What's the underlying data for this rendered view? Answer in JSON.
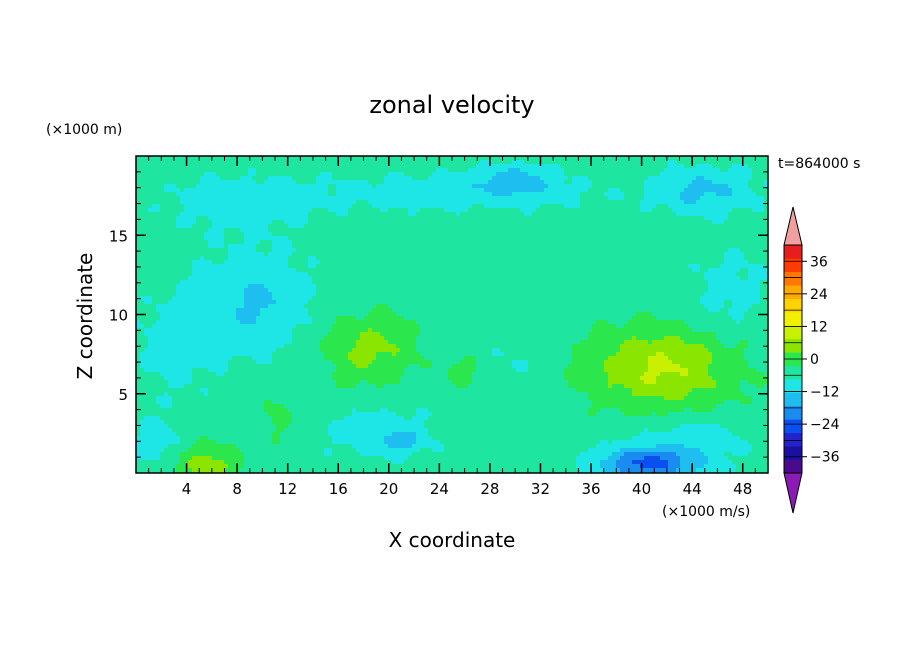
{
  "chart_data": {
    "type": "heatmap",
    "title": "zonal velocity",
    "xlabel": "X coordinate",
    "ylabel": "Z coordinate",
    "y_unit": "(×1000 m)",
    "colorbar_unit": "(×1000 m/s)",
    "time_label": "t=864000 s",
    "xlim": [
      0,
      50
    ],
    "ylim": [
      0,
      20
    ],
    "x_ticks": [
      4,
      8,
      12,
      16,
      20,
      24,
      28,
      32,
      36,
      40,
      44,
      48
    ],
    "y_ticks": [
      5,
      10,
      15
    ],
    "colorbar": {
      "min": -42,
      "max": 42,
      "step": 6,
      "tick_labels": [
        {
          "value": 36,
          "label": "36"
        },
        {
          "value": 24,
          "label": "24"
        },
        {
          "value": 12,
          "label": "12"
        },
        {
          "value": 0,
          "label": "0"
        },
        {
          "value": -12,
          "label": "−12"
        },
        {
          "value": -24,
          "label": "−24"
        },
        {
          "value": -36,
          "label": "−36"
        }
      ],
      "extend": "both"
    },
    "features": [
      {
        "x": 18.5,
        "z": 7.8,
        "amp": 11,
        "sx": 3.6,
        "sz": 2.2
      },
      {
        "x": 26,
        "z": 6.4,
        "amp": 6,
        "sx": 1.6,
        "sz": 1.0
      },
      {
        "x": 41.5,
        "z": 6.6,
        "amp": 16,
        "sx": 6.0,
        "sz": 2.6
      },
      {
        "x": 5.8,
        "z": 0.5,
        "amp": 12,
        "sx": 2.5,
        "sz": 1.3
      },
      {
        "x": 11.2,
        "z": 3.7,
        "amp": 5,
        "sx": 1.3,
        "sz": 1.8
      },
      {
        "x": 9.5,
        "z": 10.8,
        "amp": -10,
        "sx": 4.5,
        "sz": 3.2
      },
      {
        "x": 3.0,
        "z": 8.0,
        "amp": -5,
        "sx": 3.5,
        "sz": 3.5
      },
      {
        "x": 19.5,
        "z": 2.5,
        "amp": -7,
        "sx": 4.5,
        "sz": 1.7
      },
      {
        "x": 21,
        "z": 2.0,
        "amp": -8,
        "sx": 1.5,
        "sz": 0.6
      },
      {
        "x": 40.5,
        "z": 0.6,
        "amp": -22,
        "sx": 4.0,
        "sz": 1.0
      },
      {
        "x": 44,
        "z": 2.2,
        "amp": -6,
        "sx": 5.0,
        "sz": 1.6
      },
      {
        "x": 1.5,
        "z": 2.0,
        "amp": -6,
        "sx": 2.0,
        "sz": 1.6
      },
      {
        "x": 30,
        "z": 18.5,
        "amp": -10,
        "sx": 3.0,
        "sz": 1.0
      },
      {
        "x": 45,
        "z": 17.8,
        "amp": -10,
        "sx": 4.0,
        "sz": 1.5
      },
      {
        "x": 25,
        "z": 17.7,
        "amp": -6,
        "sx": 12.0,
        "sz": 1.3
      },
      {
        "x": 8,
        "z": 17.0,
        "amp": -6,
        "sx": 6.0,
        "sz": 1.8
      },
      {
        "x": 30,
        "z": 7.2,
        "amp": -3,
        "sx": 3.0,
        "sz": 2.5
      },
      {
        "x": 47,
        "z": 11.5,
        "amp": -5,
        "sx": 3.5,
        "sz": 3.0
      }
    ],
    "background_value": 3
  }
}
